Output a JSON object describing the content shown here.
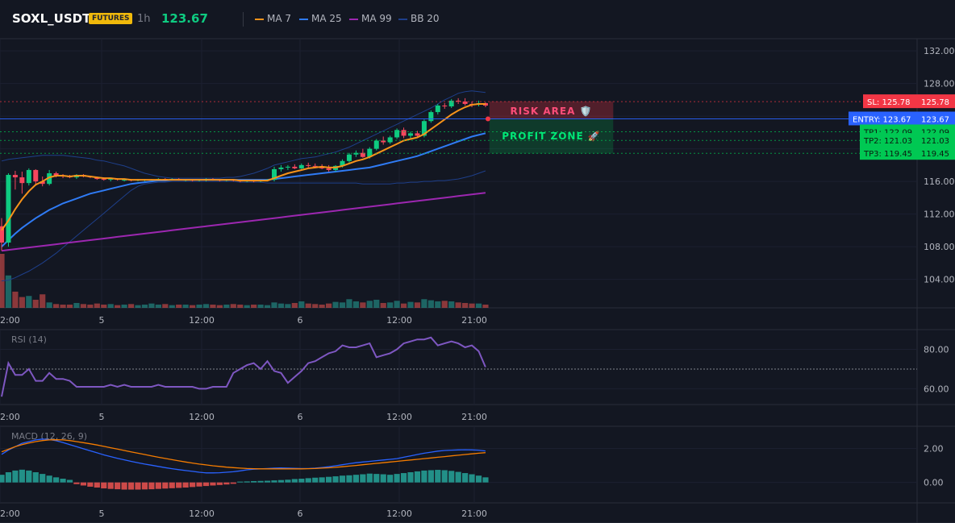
{
  "header": {
    "symbol": "SOXL_USDT",
    "badge": "FUTURES",
    "timeframe": "1h",
    "price": "123.67",
    "legend": [
      {
        "label": "MA 7",
        "color": "#f7931a"
      },
      {
        "label": "MA 25",
        "color": "#2f7bf5"
      },
      {
        "label": "MA 99",
        "color": "#9c27b0"
      },
      {
        "label": "BB 20",
        "color": "#1e3f8a"
      }
    ]
  },
  "price_levels": [
    {
      "name": "sl",
      "tag": "SL: 125.78",
      "price_label": "125.78",
      "value": 125.78,
      "color": "#f23645"
    },
    {
      "name": "entry",
      "tag": "ENTRY: 123.67",
      "price_label": "123.67",
      "value": 123.67,
      "color": "#2962ff"
    },
    {
      "name": "tp1",
      "tag": "TP1: 122.09",
      "price_label": "122.09",
      "value": 122.09,
      "color": "#00c853"
    },
    {
      "name": "tp2",
      "tag": "TP2: 121.03",
      "price_label": "121.03",
      "value": 121.03,
      "color": "#00c853"
    },
    {
      "name": "tp3",
      "tag": "TP3: 119.45",
      "price_label": "119.45",
      "value": 119.45,
      "color": "#00c853"
    }
  ],
  "zones": {
    "risk_label": "RISK AREA 🛡️",
    "profit_label": "PROFIT ZONE 🚀"
  },
  "x_labels": [
    "2:00",
    "5",
    "12:00",
    "6",
    "12:00",
    "21:00"
  ],
  "colors": {
    "up": "#26a69a",
    "down": "#ef5350",
    "candle_up": "#0ecb81",
    "candle_down": "#f6465d",
    "rsi": "#7e57c2",
    "macd": "#2962ff",
    "signal": "#f57c00"
  },
  "chart_data": [
    {
      "type": "candlestick",
      "name": "price",
      "ylim": [
        100.5,
        133.5
      ],
      "yticks": [
        "132.00",
        "128.00",
        "124.00",
        "120.00",
        "116.00",
        "112.00",
        "108.00",
        "104.00"
      ],
      "ytick_values": [
        132,
        128,
        124,
        120,
        116,
        112,
        108,
        104
      ],
      "ohlc": [
        [
          110.5,
          111.5,
          107.5,
          108.5
        ],
        [
          108.5,
          117.0,
          108.0,
          116.8
        ],
        [
          116.8,
          117.3,
          115.0,
          116.5
        ],
        [
          116.5,
          117.2,
          114.5,
          115.8
        ],
        [
          115.8,
          117.6,
          115.5,
          117.4
        ],
        [
          117.4,
          117.5,
          115.5,
          116.0
        ],
        [
          116.0,
          116.6,
          115.4,
          115.7
        ],
        [
          115.7,
          117.4,
          115.5,
          117.0
        ],
        [
          117.0,
          117.2,
          116.5,
          116.7
        ],
        [
          116.7,
          116.9,
          116.4,
          116.6
        ],
        [
          116.6,
          116.8,
          116.4,
          116.5
        ],
        [
          116.5,
          116.9,
          116.3,
          116.8
        ],
        [
          116.8,
          116.9,
          116.5,
          116.6
        ],
        [
          116.6,
          116.7,
          116.4,
          116.5
        ],
        [
          116.5,
          116.6,
          116.2,
          116.3
        ],
        [
          116.3,
          116.5,
          116.1,
          116.2
        ],
        [
          116.2,
          116.4,
          116.0,
          116.3
        ],
        [
          116.3,
          116.4,
          116.1,
          116.2
        ],
        [
          116.2,
          116.3,
          116.0,
          116.2
        ],
        [
          116.2,
          116.3,
          116.0,
          116.1
        ],
        [
          116.1,
          116.3,
          116.0,
          116.2
        ],
        [
          116.2,
          116.3,
          116.0,
          116.2
        ],
        [
          116.2,
          116.3,
          116.1,
          116.2
        ],
        [
          116.2,
          116.4,
          116.1,
          116.3
        ],
        [
          116.3,
          116.4,
          116.1,
          116.2
        ],
        [
          116.2,
          116.4,
          116.1,
          116.3
        ],
        [
          116.3,
          116.4,
          116.1,
          116.2
        ],
        [
          116.2,
          116.3,
          116.0,
          116.2
        ],
        [
          116.2,
          116.3,
          116.0,
          116.1
        ],
        [
          116.1,
          116.3,
          116.0,
          116.2
        ],
        [
          116.2,
          116.4,
          116.0,
          116.3
        ],
        [
          116.3,
          116.4,
          116.1,
          116.2
        ],
        [
          116.2,
          116.3,
          116.0,
          116.1
        ],
        [
          116.1,
          116.3,
          116.0,
          116.2
        ],
        [
          116.2,
          116.3,
          116.0,
          116.1
        ],
        [
          116.1,
          116.2,
          115.9,
          116.0
        ],
        [
          116.0,
          116.2,
          115.9,
          116.1
        ],
        [
          116.1,
          116.2,
          115.9,
          116.0
        ],
        [
          116.0,
          116.2,
          115.9,
          116.1
        ],
        [
          116.1,
          116.3,
          116.0,
          116.2
        ],
        [
          116.2,
          117.8,
          116.0,
          117.5
        ],
        [
          117.5,
          118.0,
          117.2,
          117.7
        ],
        [
          117.7,
          118.0,
          117.4,
          117.8
        ],
        [
          117.8,
          118.1,
          117.5,
          117.6
        ],
        [
          117.6,
          118.2,
          117.5,
          118.0
        ],
        [
          118.0,
          118.3,
          117.7,
          117.9
        ],
        [
          117.9,
          118.2,
          117.6,
          117.8
        ],
        [
          117.8,
          118.1,
          117.5,
          117.6
        ],
        [
          117.6,
          118.0,
          117.2,
          117.4
        ],
        [
          117.4,
          118.0,
          117.2,
          117.9
        ],
        [
          117.9,
          118.7,
          117.7,
          118.5
        ],
        [
          118.5,
          119.5,
          118.3,
          119.3
        ],
        [
          119.3,
          119.8,
          119.0,
          119.5
        ],
        [
          119.5,
          120.0,
          118.9,
          119.0
        ],
        [
          119.0,
          120.2,
          118.8,
          120.0
        ],
        [
          120.0,
          121.2,
          119.8,
          121.0
        ],
        [
          121.0,
          121.5,
          120.5,
          120.8
        ],
        [
          120.8,
          121.6,
          120.6,
          121.4
        ],
        [
          121.4,
          122.5,
          121.2,
          122.3
        ],
        [
          122.3,
          122.6,
          121.3,
          121.6
        ],
        [
          121.6,
          122.1,
          121.3,
          121.9
        ],
        [
          121.9,
          122.2,
          121.4,
          121.6
        ],
        [
          121.6,
          123.6,
          121.4,
          123.4
        ],
        [
          123.4,
          124.7,
          123.2,
          124.5
        ],
        [
          124.5,
          125.5,
          124.2,
          125.3
        ],
        [
          125.3,
          125.6,
          124.9,
          125.2
        ],
        [
          125.2,
          126.1,
          125.0,
          125.9
        ],
        [
          125.9,
          126.2,
          125.5,
          125.8
        ],
        [
          125.8,
          126.2,
          125.3,
          125.5
        ],
        [
          125.5,
          125.8,
          125.1,
          125.4
        ],
        [
          125.4,
          125.9,
          125.2,
          125.6
        ],
        [
          125.6,
          125.7,
          125.1,
          125.3
        ]
      ],
      "ma7": [
        110.0,
        111.2,
        112.6,
        113.8,
        114.8,
        115.6,
        116.0,
        116.5,
        116.7,
        116.7,
        116.6,
        116.7,
        116.7,
        116.6,
        116.5,
        116.4,
        116.4,
        116.3,
        116.3,
        116.2,
        116.2,
        116.2,
        116.2,
        116.2,
        116.2,
        116.2,
        116.2,
        116.2,
        116.2,
        116.2,
        116.2,
        116.2,
        116.2,
        116.2,
        116.2,
        116.1,
        116.1,
        116.1,
        116.1,
        116.1,
        116.4,
        116.7,
        117.0,
        117.2,
        117.4,
        117.6,
        117.7,
        117.8,
        117.7,
        117.7,
        117.9,
        118.2,
        118.5,
        118.7,
        119.0,
        119.4,
        119.8,
        120.2,
        120.6,
        121.0,
        121.2,
        121.4,
        121.8,
        122.4,
        123.0,
        123.6,
        124.2,
        124.7,
        125.1,
        125.4,
        125.5,
        125.5
      ],
      "ma25": [
        108.0,
        108.8,
        109.6,
        110.3,
        110.9,
        111.5,
        112.0,
        112.5,
        112.9,
        113.3,
        113.6,
        113.9,
        114.2,
        114.5,
        114.7,
        114.9,
        115.1,
        115.3,
        115.5,
        115.7,
        115.8,
        115.9,
        116.0,
        116.1,
        116.1,
        116.2,
        116.2,
        116.2,
        116.2,
        116.2,
        116.2,
        116.2,
        116.2,
        116.2,
        116.2,
        116.2,
        116.2,
        116.2,
        116.2,
        116.2,
        116.3,
        116.4,
        116.5,
        116.6,
        116.7,
        116.8,
        116.9,
        117.0,
        117.1,
        117.2,
        117.3,
        117.4,
        117.5,
        117.6,
        117.7,
        117.9,
        118.1,
        118.3,
        118.5,
        118.7,
        118.9,
        119.1,
        119.4,
        119.7,
        120.0,
        120.3,
        120.6,
        120.9,
        121.2,
        121.5,
        121.7,
        121.9
      ],
      "ma99": [
        107.5,
        107.6,
        107.7,
        107.8,
        107.9,
        108.0,
        108.1,
        108.2,
        108.3,
        108.4,
        108.5,
        108.6,
        108.7,
        108.8,
        108.9,
        109.0,
        109.1,
        109.2,
        109.3,
        109.4,
        109.5,
        109.6,
        109.7,
        109.8,
        109.9,
        110.0,
        110.1,
        110.2,
        110.3,
        110.4,
        110.5,
        110.6,
        110.7,
        110.8,
        110.9,
        111.0,
        111.1,
        111.2,
        111.3,
        111.4,
        111.5,
        111.6,
        111.7,
        111.8,
        111.9,
        112.0,
        112.1,
        112.2,
        112.3,
        112.4,
        112.5,
        112.6,
        112.7,
        112.8,
        112.9,
        113.0,
        113.1,
        113.2,
        113.3,
        113.4,
        113.5,
        113.6,
        113.7,
        113.8,
        113.9,
        114.0,
        114.1,
        114.2,
        114.3,
        114.4,
        114.5,
        114.6
      ],
      "bb_upper": [
        118.5,
        118.7,
        118.8,
        118.9,
        119.0,
        119.1,
        119.2,
        119.2,
        119.2,
        119.2,
        119.1,
        119.0,
        118.9,
        118.8,
        118.6,
        118.5,
        118.3,
        118.1,
        117.9,
        117.6,
        117.3,
        117.0,
        116.8,
        116.6,
        116.5,
        116.4,
        116.4,
        116.4,
        116.4,
        116.4,
        116.4,
        116.4,
        116.4,
        116.5,
        116.5,
        116.6,
        116.8,
        117.0,
        117.3,
        117.6,
        118.0,
        118.2,
        118.4,
        118.6,
        118.8,
        118.9,
        119.0,
        119.2,
        119.4,
        119.6,
        119.9,
        120.2,
        120.6,
        121.0,
        121.4,
        121.8,
        122.2,
        122.6,
        123.0,
        123.4,
        123.8,
        124.2,
        124.6,
        125.0,
        125.5,
        126.0,
        126.4,
        126.8,
        127.0,
        127.1,
        127.0,
        126.9
      ],
      "bb_lower": [
        103.8,
        103.9,
        104.2,
        104.6,
        105.0,
        105.5,
        106.0,
        106.6,
        107.2,
        107.9,
        108.6,
        109.3,
        110.0,
        110.7,
        111.4,
        112.1,
        112.8,
        113.5,
        114.2,
        114.9,
        115.4,
        115.7,
        115.8,
        115.9,
        115.9,
        116.0,
        116.0,
        116.0,
        116.0,
        116.0,
        116.0,
        116.0,
        116.0,
        116.0,
        116.0,
        115.9,
        115.9,
        115.9,
        115.9,
        115.8,
        115.8,
        115.8,
        115.8,
        115.8,
        115.8,
        115.8,
        115.8,
        115.8,
        115.8,
        115.8,
        115.8,
        115.8,
        115.8,
        115.7,
        115.7,
        115.7,
        115.7,
        115.7,
        115.8,
        115.8,
        115.9,
        115.9,
        116.0,
        116.0,
        116.1,
        116.1,
        116.2,
        116.3,
        116.5,
        116.7,
        117.0,
        117.3
      ],
      "volume": [
        10,
        6,
        3,
        2,
        2.2,
        1.5,
        2.5,
        1.0,
        0.7,
        0.6,
        0.6,
        0.9,
        0.7,
        0.6,
        0.8,
        0.6,
        0.7,
        0.5,
        0.6,
        0.7,
        0.5,
        0.6,
        0.8,
        0.6,
        0.7,
        0.5,
        0.6,
        0.6,
        0.5,
        0.6,
        0.7,
        0.6,
        0.5,
        0.6,
        0.7,
        0.6,
        0.5,
        0.6,
        0.6,
        0.5,
        1.0,
        0.8,
        0.7,
        0.9,
        1.2,
        0.8,
        0.7,
        0.6,
        0.8,
        1.1,
        1.0,
        1.6,
        1.2,
        1.0,
        1.3,
        1.5,
        0.9,
        1.0,
        1.3,
        0.8,
        1.1,
        1.0,
        1.6,
        1.4,
        1.2,
        1.3,
        1.2,
        1.0,
        0.9,
        0.8,
        0.8,
        0.6
      ]
    },
    {
      "type": "line",
      "name": "rsi",
      "title": "RSI (14)",
      "ylim": [
        52,
        90
      ],
      "yticks": [
        "80.00",
        "60.00"
      ],
      "ytick_values": [
        80,
        60
      ],
      "level": 70,
      "values": [
        56,
        73,
        67,
        67,
        70,
        64,
        64,
        68,
        65,
        65,
        64,
        61,
        61,
        61,
        61,
        61,
        62,
        61,
        62,
        61,
        61,
        61,
        61,
        62,
        61,
        61,
        61,
        61,
        61,
        60,
        60,
        61,
        61,
        61,
        68,
        70,
        72,
        73,
        70,
        74,
        69,
        68,
        63,
        66,
        69,
        73,
        74,
        76,
        78,
        79,
        82,
        81,
        81,
        82,
        83,
        76,
        77,
        78,
        80,
        83,
        84,
        85,
        85,
        86,
        82,
        83,
        84,
        83,
        81,
        82,
        79,
        71
      ]
    },
    {
      "type": "bar+line",
      "name": "macd",
      "title": "MACD (12, 26, 9)",
      "ylim": [
        -1.2,
        3.3
      ],
      "yticks": [
        "2.00",
        "0.00"
      ],
      "ytick_values": [
        2,
        0
      ],
      "histogram": [
        0.45,
        0.6,
        0.7,
        0.75,
        0.7,
        0.6,
        0.5,
        0.4,
        0.3,
        0.22,
        0.15,
        -0.1,
        -0.18,
        -0.25,
        -0.3,
        -0.35,
        -0.38,
        -0.4,
        -0.42,
        -0.42,
        -0.42,
        -0.41,
        -0.4,
        -0.38,
        -0.36,
        -0.34,
        -0.32,
        -0.3,
        -0.27,
        -0.24,
        -0.21,
        -0.18,
        -0.15,
        -0.12,
        -0.08,
        0.05,
        0.06,
        0.08,
        0.09,
        0.1,
        0.12,
        0.14,
        0.16,
        0.2,
        0.22,
        0.25,
        0.28,
        0.3,
        0.33,
        0.36,
        0.4,
        0.42,
        0.45,
        0.48,
        0.52,
        0.5,
        0.48,
        0.45,
        0.5,
        0.55,
        0.6,
        0.65,
        0.7,
        0.72,
        0.74,
        0.72,
        0.68,
        0.62,
        0.55,
        0.48,
        0.4,
        0.3
      ],
      "macd": [
        1.65,
        1.9,
        2.1,
        2.3,
        2.4,
        2.5,
        2.55,
        2.52,
        2.45,
        2.35,
        2.22,
        2.1,
        1.98,
        1.86,
        1.74,
        1.62,
        1.52,
        1.42,
        1.33,
        1.24,
        1.16,
        1.08,
        1.01,
        0.94,
        0.87,
        0.81,
        0.75,
        0.7,
        0.65,
        0.6,
        0.56,
        0.56,
        0.57,
        0.6,
        0.63,
        0.68,
        0.74,
        0.78,
        0.8,
        0.82,
        0.84,
        0.85,
        0.84,
        0.83,
        0.82,
        0.82,
        0.84,
        0.88,
        0.92,
        0.98,
        1.04,
        1.1,
        1.16,
        1.2,
        1.24,
        1.28,
        1.32,
        1.36,
        1.4,
        1.48,
        1.56,
        1.64,
        1.72,
        1.78,
        1.84,
        1.88,
        1.9,
        1.91,
        1.92,
        1.91,
        1.9,
        1.85
      ],
      "signal": [
        1.8,
        1.95,
        2.1,
        2.22,
        2.32,
        2.4,
        2.46,
        2.5,
        2.51,
        2.5,
        2.46,
        2.4,
        2.34,
        2.27,
        2.2,
        2.12,
        2.04,
        1.96,
        1.88,
        1.8,
        1.72,
        1.64,
        1.56,
        1.48,
        1.41,
        1.34,
        1.27,
        1.2,
        1.14,
        1.08,
        1.03,
        0.98,
        0.94,
        0.9,
        0.87,
        0.84,
        0.82,
        0.81,
        0.8,
        0.8,
        0.8,
        0.8,
        0.8,
        0.8,
        0.8,
        0.81,
        0.82,
        0.84,
        0.86,
        0.89,
        0.92,
        0.96,
        1.0,
        1.04,
        1.08,
        1.12,
        1.16,
        1.2,
        1.24,
        1.28,
        1.32,
        1.36,
        1.4,
        1.44,
        1.48,
        1.52,
        1.56,
        1.6,
        1.64,
        1.68,
        1.72,
        1.75
      ]
    }
  ]
}
